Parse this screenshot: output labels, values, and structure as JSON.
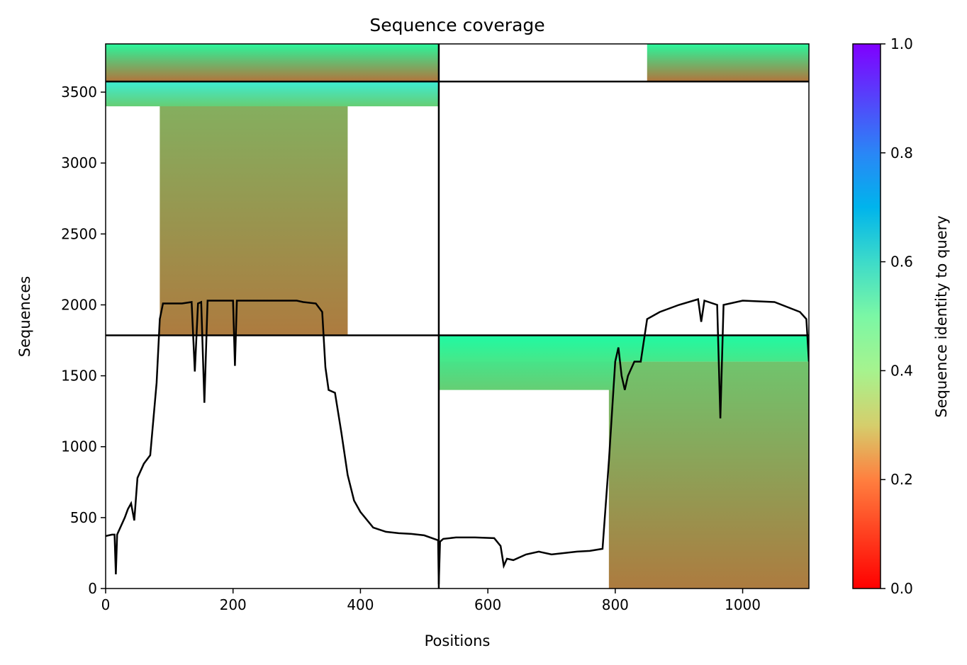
{
  "chart_data": {
    "type": "heatmap",
    "title": "Sequence coverage",
    "xlabel": "Positions",
    "ylabel": "Sequences",
    "xlim": [
      0,
      1104
    ],
    "ylim": [
      0,
      3840
    ],
    "xticks": [
      0,
      200,
      400,
      600,
      800,
      1000
    ],
    "yticks": [
      0,
      500,
      1000,
      1500,
      2000,
      2500,
      3000,
      3500
    ],
    "colorbar": {
      "label": "Sequence identity to query",
      "range": [
        0.0,
        1.0
      ],
      "ticks": [
        "0.0",
        "0.2",
        "0.4",
        "0.6",
        "0.8",
        "1.0"
      ],
      "colormap": "rainbow_r"
    },
    "segment_boundaries": {
      "position": 523,
      "sequence_rows": [
        1785,
        3575
      ]
    },
    "blocks": [
      {
        "x": [
          85,
          380
        ],
        "y": [
          1785,
          3575
        ],
        "identity_bottom": 0.16,
        "identity_top": 0.25
      },
      {
        "x": [
          0,
          523
        ],
        "y": [
          3400,
          3575
        ],
        "identity_bottom": 0.3,
        "identity_top": 0.62
      },
      {
        "x": [
          0,
          523
        ],
        "y": [
          3575,
          3840
        ],
        "identity_bottom": 0.15,
        "identity_top": 0.42
      },
      {
        "x": [
          790,
          1104
        ],
        "y": [
          0,
          1600
        ],
        "identity_bottom": 0.16,
        "identity_top": 0.28
      },
      {
        "x": [
          523,
          800
        ],
        "y": [
          1400,
          1785
        ],
        "identity_bottom": 0.3,
        "identity_top": 0.42
      },
      {
        "x": [
          523,
          1104
        ],
        "y": [
          1600,
          1785
        ],
        "identity_bottom": 0.36,
        "identity_top": 0.44
      },
      {
        "x": [
          850,
          1104
        ],
        "y": [
          3575,
          3840
        ],
        "identity_bottom": 0.15,
        "identity_top": 0.42
      }
    ],
    "coverage_line": {
      "x": [
        0,
        10,
        14,
        16,
        18,
        20,
        30,
        35,
        40,
        45,
        50,
        60,
        70,
        80,
        85,
        90,
        120,
        135,
        140,
        145,
        150,
        155,
        160,
        200,
        203,
        206,
        250,
        300,
        310,
        330,
        340,
        345,
        350,
        360,
        370,
        380,
        390,
        400,
        420,
        440,
        460,
        480,
        500,
        522,
        523,
        525,
        530,
        550,
        580,
        610,
        620,
        625,
        630,
        640,
        660,
        680,
        700,
        720,
        740,
        760,
        780,
        790,
        800,
        805,
        810,
        815,
        820,
        830,
        840,
        850,
        870,
        900,
        930,
        935,
        940,
        960,
        965,
        970,
        1000,
        1050,
        1090,
        1100,
        1104
      ],
      "y": [
        370,
        380,
        380,
        100,
        380,
        400,
        500,
        560,
        600,
        480,
        780,
        880,
        940,
        1450,
        1900,
        2010,
        2010,
        2020,
        1530,
        2010,
        2020,
        1310,
        2030,
        2030,
        1570,
        2030,
        2030,
        2030,
        2020,
        2010,
        1950,
        1560,
        1400,
        1380,
        1100,
        800,
        620,
        540,
        430,
        400,
        390,
        385,
        375,
        340,
        30,
        330,
        350,
        360,
        360,
        355,
        300,
        160,
        210,
        200,
        240,
        260,
        240,
        250,
        260,
        265,
        280,
        900,
        1600,
        1700,
        1500,
        1400,
        1500,
        1600,
        1600,
        1900,
        1950,
        2000,
        2040,
        1880,
        2030,
        2000,
        1200,
        2000,
        2030,
        2020,
        1950,
        1900,
        1600
      ]
    }
  }
}
